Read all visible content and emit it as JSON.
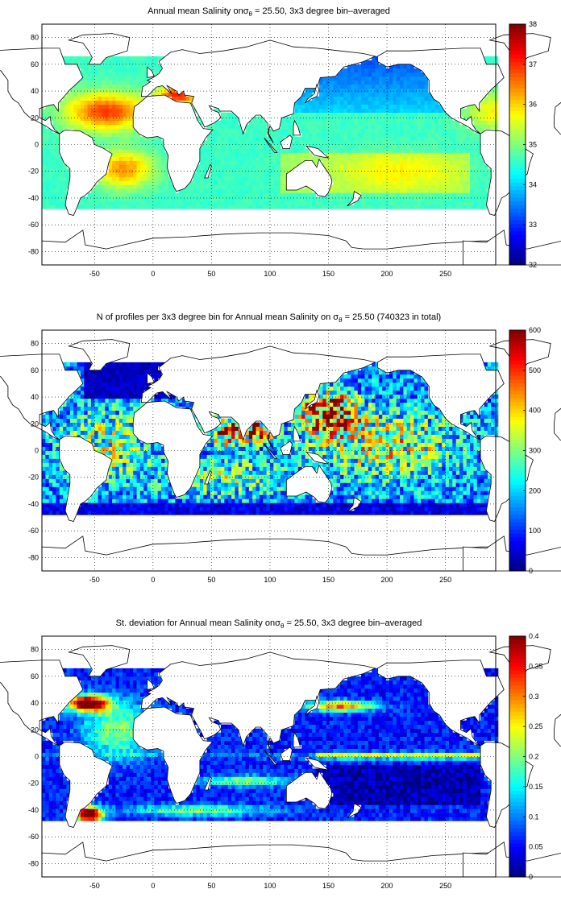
{
  "chart_data": [
    {
      "type": "heatmap",
      "title_parts": [
        "Annual mean Salinity onσ",
        "θ",
        " = 25.50, 3x3 degree bin–averaged"
      ],
      "xlim": [
        -95,
        293
      ],
      "ylim": [
        -90,
        90
      ],
      "x_ticks": [
        "-50",
        "0",
        "50",
        "100",
        "150",
        "200",
        "250"
      ],
      "y_ticks": [
        "80",
        "60",
        "40",
        "20",
        "0",
        "-20",
        "-40",
        "-60",
        "-80"
      ],
      "grid": true,
      "colorbar": {
        "range": [
          32,
          38
        ],
        "ticks": [
          "38",
          "37",
          "36",
          "35",
          "34",
          "33",
          "32"
        ]
      },
      "colormap": "jet",
      "regions": [
        {
          "name": "north-atlantic-subtropical",
          "value": 36.9
        },
        {
          "name": "south-atlantic-subtropical",
          "value": 36.5
        },
        {
          "name": "mediterranean",
          "value": 38.0
        },
        {
          "name": "south-pacific",
          "value": 35.3
        },
        {
          "name": "north-pacific-subpolar",
          "value": 33.6
        },
        {
          "name": "indian-ocean",
          "value": 35.0
        }
      ]
    },
    {
      "type": "heatmap",
      "title_parts": [
        "N of profiles per 3x3 degree bin for Annual mean Salinity on σ",
        "θ",
        " = 25.50 (740323 in total)"
      ],
      "xlim": [
        -95,
        293
      ],
      "ylim": [
        -90,
        90
      ],
      "x_ticks": [
        "-50",
        "0",
        "50",
        "100",
        "150",
        "200",
        "250"
      ],
      "y_ticks": [
        "80",
        "60",
        "40",
        "20",
        "0",
        "-20",
        "-40",
        "-60",
        "-80"
      ],
      "grid": true,
      "colorbar": {
        "range": [
          0,
          600
        ],
        "ticks": [
          "600",
          "500",
          "400",
          "300",
          "200",
          "100",
          "0"
        ]
      },
      "colormap": "jet",
      "regions": [
        {
          "name": "kuroshio-north-pacific",
          "value": 600
        },
        {
          "name": "arabian-sea-bay-of-bengal",
          "value": 560
        },
        {
          "name": "tropical-pacific",
          "value": 330
        },
        {
          "name": "southern-ocean",
          "value": 60
        }
      ]
    },
    {
      "type": "heatmap",
      "title_parts": [
        "St. deviation for Annual mean Salinity onσ",
        "θ",
        " = 25.50, 3x3 degree bin–averaged"
      ],
      "xlim": [
        -95,
        293
      ],
      "ylim": [
        -90,
        90
      ],
      "x_ticks": [
        "-50",
        "0",
        "50",
        "100",
        "150",
        "200",
        "250"
      ],
      "y_ticks": [
        "80",
        "60",
        "40",
        "20",
        "0",
        "-20",
        "-40",
        "-60",
        "-80"
      ],
      "grid": true,
      "colorbar": {
        "range": [
          0,
          0.4
        ],
        "ticks": [
          "0.4",
          "0.35",
          "0.3",
          "0.25",
          "0.2",
          "0.15",
          "0.1",
          "0.05",
          "0"
        ]
      },
      "colormap": "jet",
      "regions": [
        {
          "name": "gulf-stream",
          "value": 0.4
        },
        {
          "name": "brazil-malvinas-confluence",
          "value": 0.4
        },
        {
          "name": "central-pacific",
          "value": 0.03
        },
        {
          "name": "equatorial-pacific-band",
          "value": 0.2
        },
        {
          "name": "kuroshio-extension",
          "value": 0.3
        }
      ]
    }
  ]
}
